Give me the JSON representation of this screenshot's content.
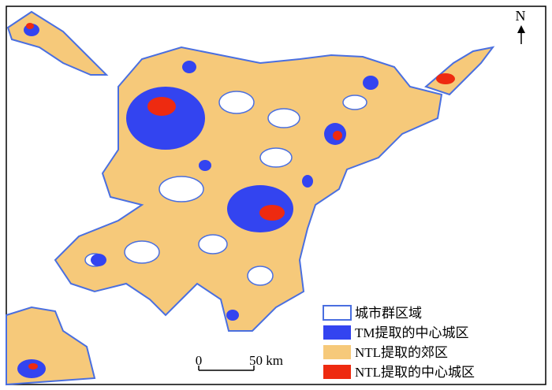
{
  "north_label": "N",
  "scale_bar": {
    "labels": [
      "0",
      "50 km"
    ]
  },
  "legend": {
    "items": [
      "城市群区域",
      "TM提取的中心城区",
      "NTL提取的郊区",
      "NTL提取的中心城区"
    ]
  }
}
